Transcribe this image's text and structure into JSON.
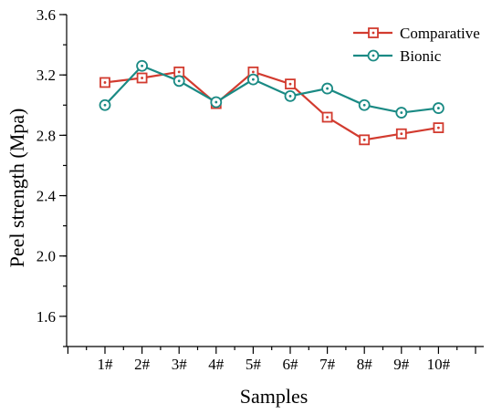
{
  "chart_data": {
    "type": "line",
    "categories": [
      "1#",
      "2#",
      "3#",
      "4#",
      "5#",
      "6#",
      "7#",
      "8#",
      "9#",
      "10#"
    ],
    "series": [
      {
        "name": "Comparative",
        "color": "#d23b2f",
        "marker": "square-dot",
        "values": [
          3.15,
          3.18,
          3.22,
          3.01,
          3.22,
          3.14,
          2.92,
          2.77,
          2.81,
          2.85
        ]
      },
      {
        "name": "Bionic",
        "color": "#1a8a84",
        "marker": "circle-dot",
        "values": [
          3.0,
          3.26,
          3.16,
          3.02,
          3.17,
          3.06,
          3.11,
          3.0,
          2.95,
          2.98
        ]
      }
    ],
    "xlabel": "Samples",
    "ylabel": "Peel strength (Mpa)",
    "ylim": [
      1.4,
      3.6
    ],
    "yticks": [
      "1.6",
      "2.0",
      "2.4",
      "2.8",
      "3.2",
      "3.6"
    ],
    "ytick_values": [
      1.6,
      2.0,
      2.4,
      2.8,
      3.2,
      3.6
    ],
    "grid": false,
    "legend_position": "top-right"
  }
}
